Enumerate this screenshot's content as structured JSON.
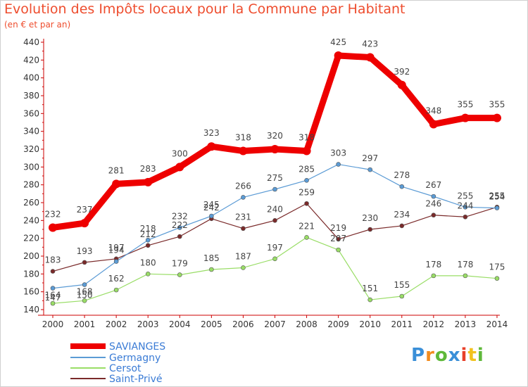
{
  "chart_data": {
    "type": "line",
    "title": "Evolution des Impôts locaux pour la Commune par Habitant",
    "subtitle": "(en € et par an)",
    "xlabel": "",
    "ylabel": "",
    "ylim": [
      140,
      440
    ],
    "yticks": [
      "140",
      "160",
      "180",
      "200",
      "220",
      "240",
      "260",
      "280",
      "300",
      "320",
      "340",
      "360",
      "380",
      "400",
      "420",
      "440"
    ],
    "categories": [
      "2000",
      "2001",
      "2002",
      "2003",
      "2004",
      "2005",
      "2006",
      "2007",
      "2008",
      "2009",
      "2010",
      "2011",
      "2012",
      "2013",
      "2014"
    ],
    "series": [
      {
        "name": "SAVIANGES",
        "color": "#ee0000",
        "values": [
          232,
          237,
          281,
          283,
          300,
          323,
          318,
          320,
          318,
          425,
          423,
          392,
          348,
          355,
          355
        ]
      },
      {
        "name": "Germagny",
        "color": "#5b9bd5",
        "values": [
          164,
          168,
          194,
          218,
          232,
          245,
          266,
          275,
          285,
          303,
          297,
          278,
          267,
          255,
          254
        ]
      },
      {
        "name": "Cersot",
        "color": "#99dd66",
        "values": [
          147,
          150,
          162,
          180,
          179,
          185,
          187,
          197,
          221,
          207,
          151,
          155,
          178,
          178,
          175
        ]
      },
      {
        "name": "Saint-Privé",
        "color": "#7a2a2a",
        "values": [
          183,
          193,
          197,
          212,
          222,
          242,
          231,
          240,
          259,
          219,
          230,
          234,
          246,
          244,
          255
        ]
      }
    ],
    "legend_position": "bottom-left"
  },
  "logo": {
    "letters": [
      "P",
      "r",
      "o",
      "x",
      "i",
      "t",
      "i"
    ],
    "colors": [
      "#3a8fd8",
      "#f28c1e",
      "#5fb83a",
      "#3a8fd8",
      "#e8402a",
      "#f2c21e",
      "#5fb83a"
    ]
  }
}
